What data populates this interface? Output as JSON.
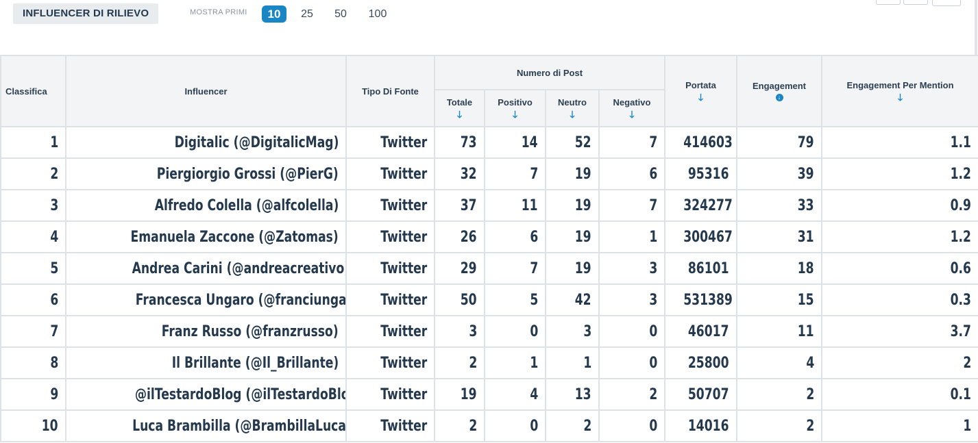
{
  "section": {
    "title": "INFLUENCER DI RILIEVO"
  },
  "show": {
    "label": "MOSTRA PRIMI",
    "options": [
      "10",
      "25",
      "50",
      "100"
    ],
    "selected": "10"
  },
  "table": {
    "headers": {
      "rank": "Classifica",
      "influencer": "Influencer",
      "source_type": "Tipo Di Fonte",
      "post_count_group": "Numero di Post",
      "total": "Totale",
      "positive": "Positivo",
      "neutral": "Neutro",
      "negative": "Negativo",
      "reach": "Portata",
      "engagement": "Engagement",
      "engagement_per_mention": "Engagement Per Mention"
    },
    "sort_icons": {
      "total": "arrow-down-icon",
      "positive": "arrow-down-icon",
      "neutral": "arrow-down-icon",
      "negative": "arrow-down-icon",
      "reach": "arrow-down-icon",
      "engagement": "sorted-desc-circle-icon",
      "engagement_per_mention": "arrow-down-icon"
    },
    "rows": [
      {
        "rank": "1",
        "influencer": "Digitalic (@DigitalicMag)",
        "source": "Twitter",
        "total": "73",
        "positive": "14",
        "neutral": "52",
        "negative": "7",
        "reach": "414603",
        "engagement": "79",
        "epm": "1.1"
      },
      {
        "rank": "2",
        "influencer": "Piergiorgio Grossi (@PierG)",
        "source": "Twitter",
        "total": "32",
        "positive": "7",
        "neutral": "19",
        "negative": "6",
        "reach": "95316",
        "engagement": "39",
        "epm": "1.2"
      },
      {
        "rank": "3",
        "influencer": "Alfredo Colella (@alfcolella)",
        "source": "Twitter",
        "total": "37",
        "positive": "11",
        "neutral": "19",
        "negative": "7",
        "reach": "324277",
        "engagement": "33",
        "epm": "0.9"
      },
      {
        "rank": "4",
        "influencer": "Emanuela Zaccone (@Zatomas)",
        "source": "Twitter",
        "total": "26",
        "positive": "6",
        "neutral": "19",
        "negative": "1",
        "reach": "300467",
        "engagement": "31",
        "epm": "1.2"
      },
      {
        "rank": "5",
        "influencer": "Andrea Carini (@andreacreativo)",
        "source": "Twitter",
        "total": "29",
        "positive": "7",
        "neutral": "19",
        "negative": "3",
        "reach": "86101",
        "engagement": "18",
        "epm": "0.6"
      },
      {
        "rank": "6",
        "influencer": "Francesca Ungaro (@franciungaro)",
        "source": "Twitter",
        "total": "50",
        "positive": "5",
        "neutral": "42",
        "negative": "3",
        "reach": "531389",
        "engagement": "15",
        "epm": "0.3"
      },
      {
        "rank": "7",
        "influencer": "Franz Russo (@franzrusso)",
        "source": "Twitter",
        "total": "3",
        "positive": "0",
        "neutral": "3",
        "negative": "0",
        "reach": "46017",
        "engagement": "11",
        "epm": "3.7"
      },
      {
        "rank": "8",
        "influencer": "Il Brillante (@Il_Brillante)",
        "source": "Twitter",
        "total": "2",
        "positive": "1",
        "neutral": "1",
        "negative": "0",
        "reach": "25800",
        "engagement": "4",
        "epm": "2"
      },
      {
        "rank": "9",
        "influencer": "@ilTestardoBlog (@ilTestardoBlog)",
        "source": "Twitter",
        "total": "19",
        "positive": "4",
        "neutral": "13",
        "negative": "2",
        "reach": "50707",
        "engagement": "2",
        "epm": "0.1"
      },
      {
        "rank": "10",
        "influencer": "Luca Brambilla (@BrambillaLuca)",
        "source": "Twitter",
        "total": "2",
        "positive": "0",
        "neutral": "2",
        "negative": "0",
        "reach": "14016",
        "engagement": "2",
        "epm": "1"
      }
    ]
  },
  "colors": {
    "accent": "#1a86c4",
    "header_bg": "#f2f4f6",
    "border": "#dde2e6",
    "text": "#24394d"
  }
}
